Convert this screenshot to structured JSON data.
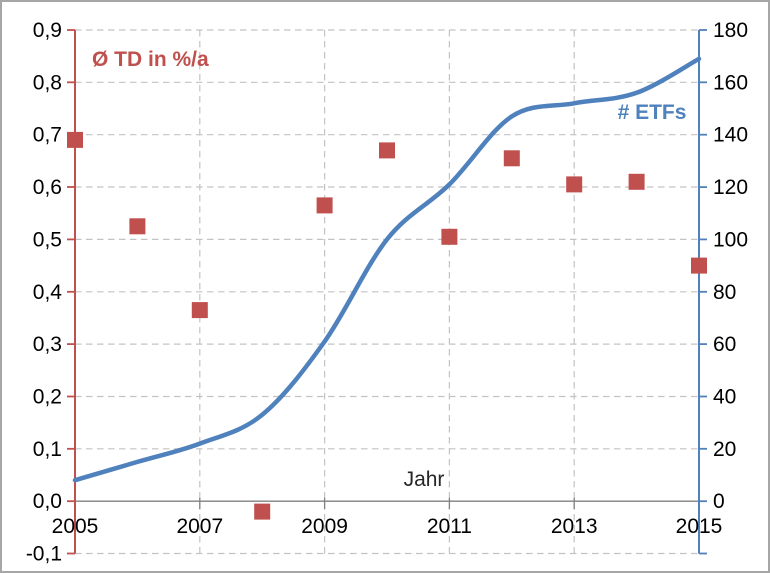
{
  "chart_data": {
    "type": "combo",
    "title": "",
    "x_title": "Jahr",
    "x": [
      2005,
      2006,
      2007,
      2008,
      2009,
      2010,
      2011,
      2012,
      2013,
      2014,
      2015
    ],
    "x_tick_years": [
      2005,
      2007,
      2009,
      2011,
      2013,
      2015
    ],
    "x_tick_labels": [
      "2005",
      "2007",
      "2009",
      "2011",
      "2013",
      "2015"
    ],
    "x_tick_mark_years": [
      2007,
      2009,
      2011,
      2013
    ],
    "vertical_gridline_years": [
      2007,
      2009,
      2011,
      2013
    ],
    "series": [
      {
        "name": "Ø TD in %/a",
        "type": "scatter",
        "marker": "square",
        "marker_size": 16,
        "axis": "left",
        "color": "#C0504D",
        "values": [
          0.69,
          0.525,
          0.365,
          -0.02,
          0.565,
          0.67,
          0.505,
          0.655,
          0.605,
          0.61,
          0.45
        ]
      },
      {
        "name": "# ETFs",
        "type": "line",
        "smooth": true,
        "stroke_width": 4.5,
        "axis": "right",
        "color": "#4F81BD",
        "values": [
          8,
          15,
          22,
          33,
          61,
          100,
          121,
          147,
          152,
          156,
          169
        ]
      }
    ],
    "left_axis": {
      "title": "Ø TD in %/a",
      "color": "#C0504D",
      "min": -0.1,
      "max": 0.9,
      "step": 0.1,
      "tick_labels": [
        "-0,1",
        "0,0",
        "0,1",
        "0,2",
        "0,3",
        "0,4",
        "0,5",
        "0,6",
        "0,7",
        "0,8",
        "0,9"
      ]
    },
    "right_axis": {
      "title": "# ETFs",
      "color": "#4F81BD",
      "min": -20,
      "max": 180,
      "step": 20,
      "label_start_value": 0,
      "tick_labels": [
        "0",
        "20",
        "40",
        "60",
        "80",
        "100",
        "120",
        "140",
        "160",
        "180"
      ]
    },
    "grid": {
      "color": "#C3C3C3",
      "dash": "6.5 4.5",
      "zero_line_color": "#808080"
    },
    "text_color": "#000000",
    "frame_color": "#A6A6A6",
    "legend": "none"
  }
}
